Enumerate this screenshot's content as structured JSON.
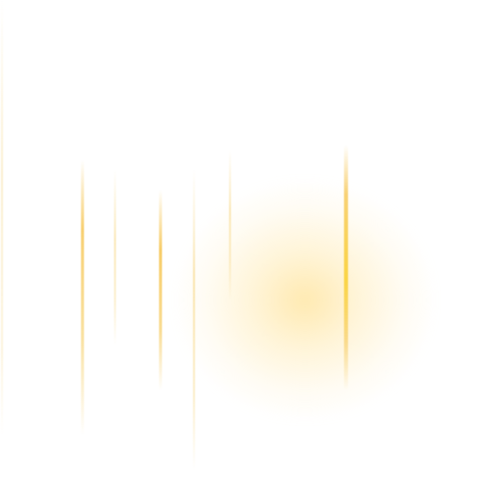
{
  "scene": {
    "background_color": "#ffffff",
    "glow_color": "#ffe296",
    "streak_color": "#f5c842",
    "elements": [
      "soft-glow",
      "vertical-light-streaks"
    ]
  }
}
